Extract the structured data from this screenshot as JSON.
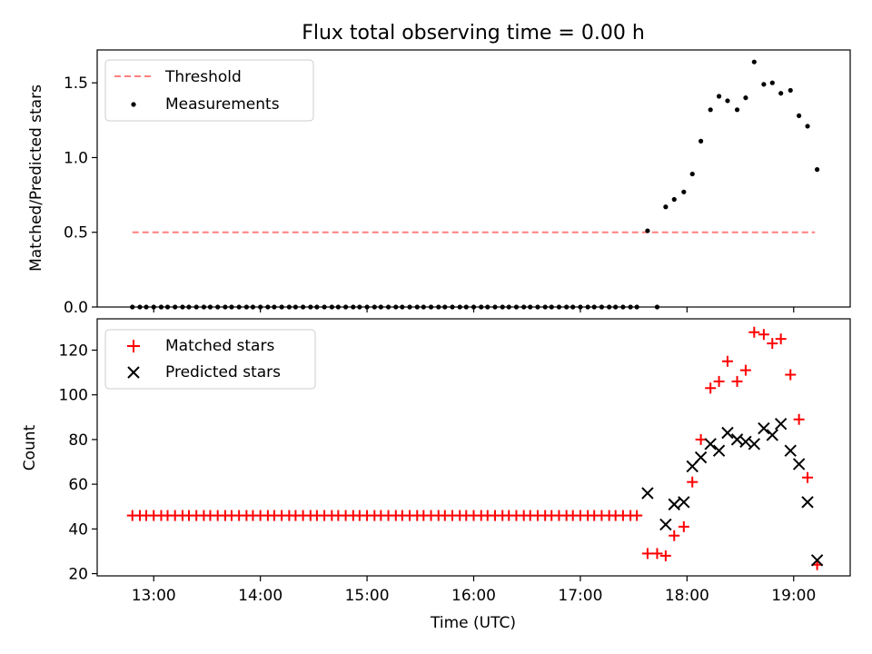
{
  "chart_data": [
    {
      "type": "scatter",
      "title": "Flux total observing time = 0.00 h",
      "ylabel": "Matched/Predicted stars",
      "xlabel": "",
      "xlim_hours": [
        12.47,
        19.53
      ],
      "ylim": [
        0,
        1.72
      ],
      "yticks": [
        0.0,
        0.5,
        1.0,
        1.5
      ],
      "ytick_labels": [
        "0.0",
        "0.5",
        "1.0",
        "1.5"
      ],
      "legend_position": "upper-left",
      "series": [
        {
          "name": "Threshold",
          "style": "dashed-line",
          "color": "#ff7f7f",
          "points": [
            [
              12.8,
              0.5
            ],
            [
              19.2,
              0.5
            ]
          ]
        },
        {
          "name": "Measurements",
          "style": "dot",
          "color": "#000000",
          "points": [
            [
              12.8,
              0
            ],
            [
              12.87,
              0
            ],
            [
              12.93,
              0
            ],
            [
              13.0,
              0
            ],
            [
              13.07,
              0
            ],
            [
              13.13,
              0
            ],
            [
              13.2,
              0
            ],
            [
              13.27,
              0
            ],
            [
              13.33,
              0
            ],
            [
              13.4,
              0
            ],
            [
              13.47,
              0
            ],
            [
              13.53,
              0
            ],
            [
              13.6,
              0
            ],
            [
              13.67,
              0
            ],
            [
              13.73,
              0
            ],
            [
              13.8,
              0
            ],
            [
              13.87,
              0
            ],
            [
              13.93,
              0
            ],
            [
              14.0,
              0
            ],
            [
              14.07,
              0
            ],
            [
              14.13,
              0
            ],
            [
              14.2,
              0
            ],
            [
              14.27,
              0
            ],
            [
              14.33,
              0
            ],
            [
              14.4,
              0
            ],
            [
              14.47,
              0
            ],
            [
              14.53,
              0
            ],
            [
              14.6,
              0
            ],
            [
              14.67,
              0
            ],
            [
              14.73,
              0
            ],
            [
              14.8,
              0
            ],
            [
              14.87,
              0
            ],
            [
              14.93,
              0
            ],
            [
              15.0,
              0
            ],
            [
              15.07,
              0
            ],
            [
              15.13,
              0
            ],
            [
              15.2,
              0
            ],
            [
              15.27,
              0
            ],
            [
              15.33,
              0
            ],
            [
              15.4,
              0
            ],
            [
              15.47,
              0
            ],
            [
              15.53,
              0
            ],
            [
              15.6,
              0
            ],
            [
              15.67,
              0
            ],
            [
              15.73,
              0
            ],
            [
              15.8,
              0
            ],
            [
              15.87,
              0
            ],
            [
              15.93,
              0
            ],
            [
              16.0,
              0
            ],
            [
              16.07,
              0
            ],
            [
              16.13,
              0
            ],
            [
              16.2,
              0
            ],
            [
              16.27,
              0
            ],
            [
              16.33,
              0
            ],
            [
              16.4,
              0
            ],
            [
              16.47,
              0
            ],
            [
              16.53,
              0
            ],
            [
              16.6,
              0
            ],
            [
              16.67,
              0
            ],
            [
              16.73,
              0
            ],
            [
              16.8,
              0
            ],
            [
              16.87,
              0
            ],
            [
              16.93,
              0
            ],
            [
              17.0,
              0
            ],
            [
              17.07,
              0
            ],
            [
              17.13,
              0
            ],
            [
              17.2,
              0
            ],
            [
              17.27,
              0
            ],
            [
              17.33,
              0
            ],
            [
              17.4,
              0
            ],
            [
              17.47,
              0
            ],
            [
              17.53,
              0
            ],
            [
              17.63,
              0.51
            ],
            [
              17.72,
              0
            ],
            [
              17.8,
              0.67
            ],
            [
              17.88,
              0.72
            ],
            [
              17.97,
              0.77
            ],
            [
              18.05,
              0.89
            ],
            [
              18.13,
              1.11
            ],
            [
              18.22,
              1.32
            ],
            [
              18.3,
              1.41
            ],
            [
              18.38,
              1.38
            ],
            [
              18.47,
              1.32
            ],
            [
              18.55,
              1.4
            ],
            [
              18.63,
              1.64
            ],
            [
              18.72,
              1.49
            ],
            [
              18.8,
              1.5
            ],
            [
              18.88,
              1.43
            ],
            [
              18.97,
              1.45
            ],
            [
              19.05,
              1.28
            ],
            [
              19.13,
              1.21
            ],
            [
              19.22,
              0.92
            ]
          ]
        }
      ]
    },
    {
      "type": "scatter",
      "title": "",
      "ylabel": "Count",
      "xlabel": "Time (UTC)",
      "xlim_hours": [
        12.47,
        19.53
      ],
      "ylim": [
        19,
        134
      ],
      "yticks": [
        20,
        40,
        60,
        80,
        100,
        120
      ],
      "ytick_labels": [
        "20",
        "40",
        "60",
        "80",
        "100",
        "120"
      ],
      "xticks_hours": [
        13,
        14,
        15,
        16,
        17,
        18,
        19
      ],
      "xtick_labels": [
        "13:00",
        "14:00",
        "15:00",
        "16:00",
        "17:00",
        "18:00",
        "19:00"
      ],
      "legend_position": "upper-left",
      "series": [
        {
          "name": "Matched stars",
          "style": "plus",
          "color": "#ff0000",
          "points": [
            [
              12.8,
              46
            ],
            [
              12.87,
              46
            ],
            [
              12.93,
              46
            ],
            [
              13.0,
              46
            ],
            [
              13.07,
              46
            ],
            [
              13.13,
              46
            ],
            [
              13.2,
              46
            ],
            [
              13.27,
              46
            ],
            [
              13.33,
              46
            ],
            [
              13.4,
              46
            ],
            [
              13.47,
              46
            ],
            [
              13.53,
              46
            ],
            [
              13.6,
              46
            ],
            [
              13.67,
              46
            ],
            [
              13.73,
              46
            ],
            [
              13.8,
              46
            ],
            [
              13.87,
              46
            ],
            [
              13.93,
              46
            ],
            [
              14.0,
              46
            ],
            [
              14.07,
              46
            ],
            [
              14.13,
              46
            ],
            [
              14.2,
              46
            ],
            [
              14.27,
              46
            ],
            [
              14.33,
              46
            ],
            [
              14.4,
              46
            ],
            [
              14.47,
              46
            ],
            [
              14.53,
              46
            ],
            [
              14.6,
              46
            ],
            [
              14.67,
              46
            ],
            [
              14.73,
              46
            ],
            [
              14.8,
              46
            ],
            [
              14.87,
              46
            ],
            [
              14.93,
              46
            ],
            [
              15.0,
              46
            ],
            [
              15.07,
              46
            ],
            [
              15.13,
              46
            ],
            [
              15.2,
              46
            ],
            [
              15.27,
              46
            ],
            [
              15.33,
              46
            ],
            [
              15.4,
              46
            ],
            [
              15.47,
              46
            ],
            [
              15.53,
              46
            ],
            [
              15.6,
              46
            ],
            [
              15.67,
              46
            ],
            [
              15.73,
              46
            ],
            [
              15.8,
              46
            ],
            [
              15.87,
              46
            ],
            [
              15.93,
              46
            ],
            [
              16.0,
              46
            ],
            [
              16.07,
              46
            ],
            [
              16.13,
              46
            ],
            [
              16.2,
              46
            ],
            [
              16.27,
              46
            ],
            [
              16.33,
              46
            ],
            [
              16.4,
              46
            ],
            [
              16.47,
              46
            ],
            [
              16.53,
              46
            ],
            [
              16.6,
              46
            ],
            [
              16.67,
              46
            ],
            [
              16.73,
              46
            ],
            [
              16.8,
              46
            ],
            [
              16.87,
              46
            ],
            [
              16.93,
              46
            ],
            [
              17.0,
              46
            ],
            [
              17.07,
              46
            ],
            [
              17.13,
              46
            ],
            [
              17.2,
              46
            ],
            [
              17.27,
              46
            ],
            [
              17.33,
              46
            ],
            [
              17.4,
              46
            ],
            [
              17.47,
              46
            ],
            [
              17.53,
              46
            ],
            [
              17.63,
              29
            ],
            [
              17.72,
              29
            ],
            [
              17.8,
              28
            ],
            [
              17.88,
              37
            ],
            [
              17.97,
              41
            ],
            [
              18.05,
              61
            ],
            [
              18.13,
              80
            ],
            [
              18.22,
              103
            ],
            [
              18.3,
              106
            ],
            [
              18.38,
              115
            ],
            [
              18.47,
              106
            ],
            [
              18.55,
              111
            ],
            [
              18.63,
              128
            ],
            [
              18.72,
              127
            ],
            [
              18.8,
              123
            ],
            [
              18.88,
              125
            ],
            [
              18.97,
              109
            ],
            [
              19.05,
              89
            ],
            [
              19.13,
              63
            ],
            [
              19.22,
              24
            ]
          ]
        },
        {
          "name": "Predicted stars",
          "style": "x",
          "color": "#000000",
          "points": [
            [
              17.63,
              56
            ],
            [
              17.8,
              42
            ],
            [
              17.88,
              51
            ],
            [
              17.97,
              52
            ],
            [
              18.05,
              68
            ],
            [
              18.13,
              72
            ],
            [
              18.22,
              78
            ],
            [
              18.3,
              75
            ],
            [
              18.38,
              83
            ],
            [
              18.47,
              80
            ],
            [
              18.55,
              79
            ],
            [
              18.63,
              78
            ],
            [
              18.72,
              85
            ],
            [
              18.8,
              82
            ],
            [
              18.88,
              87
            ],
            [
              18.97,
              75
            ],
            [
              19.05,
              69
            ],
            [
              19.13,
              52
            ],
            [
              19.22,
              26
            ]
          ]
        }
      ]
    }
  ]
}
